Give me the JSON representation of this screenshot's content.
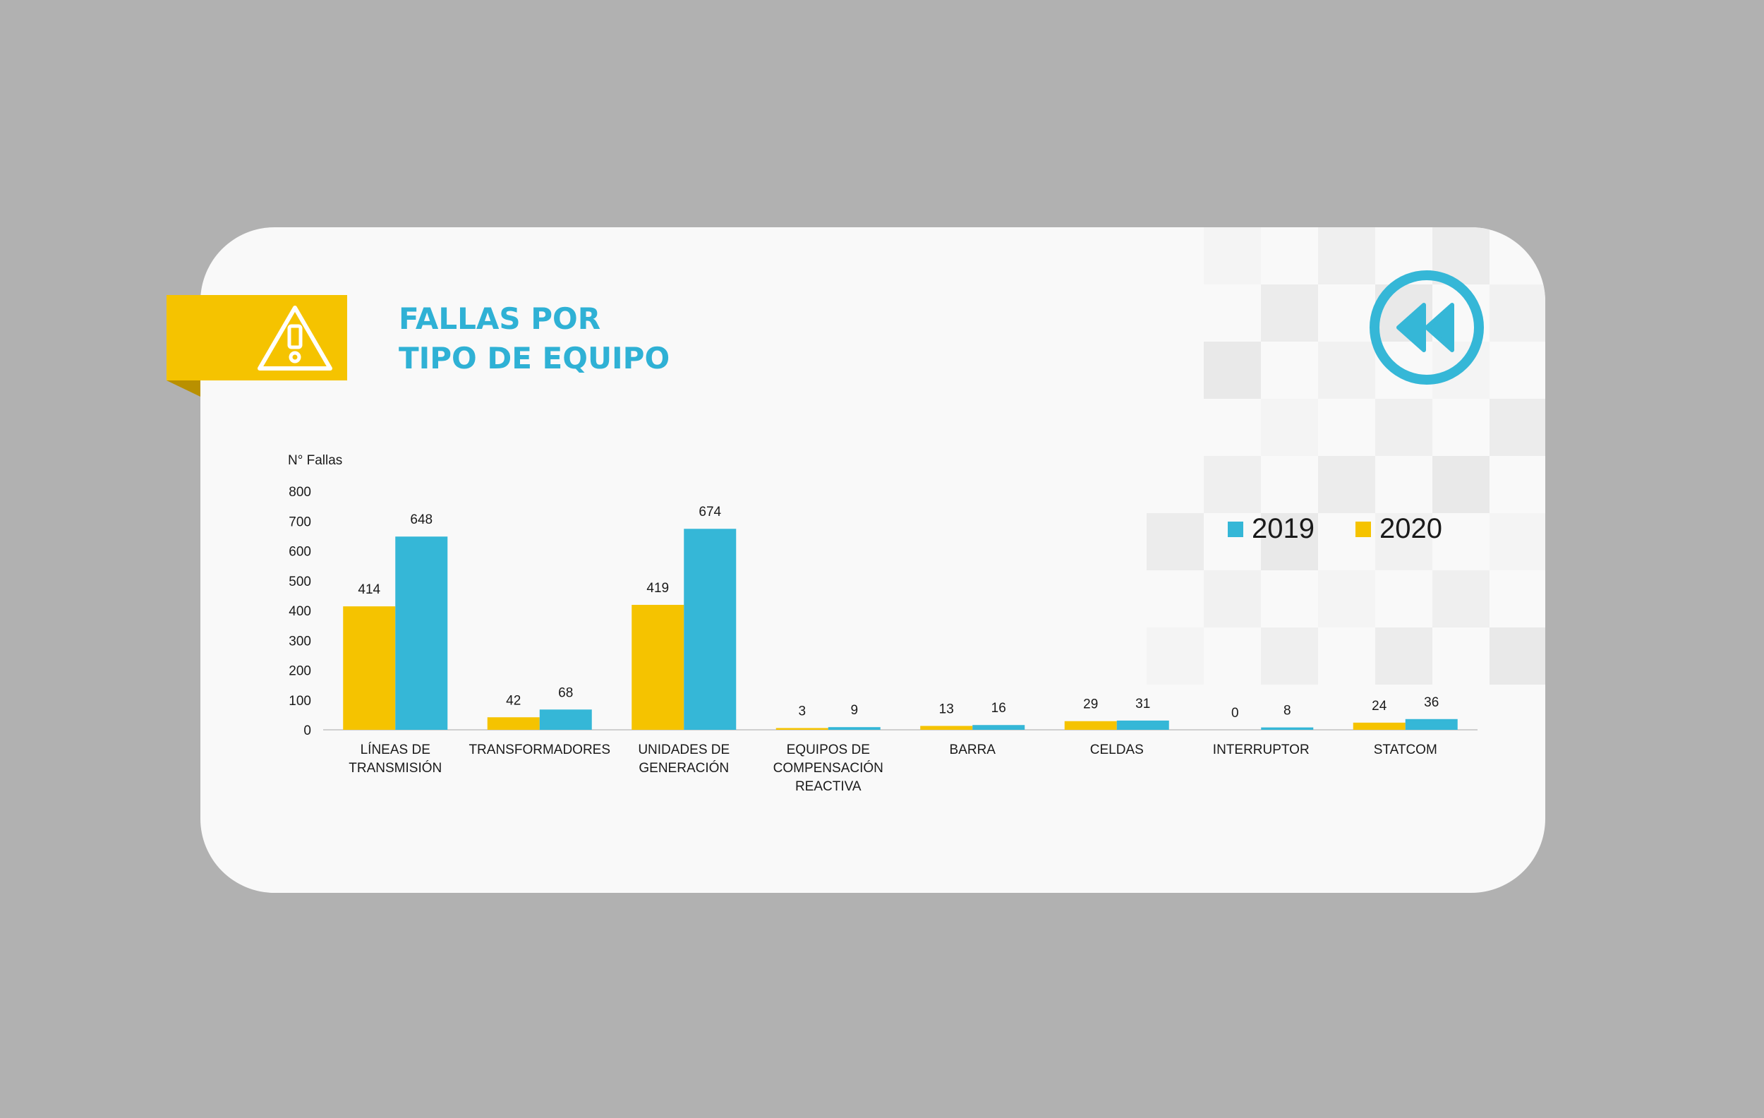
{
  "title_line1": "FALLAS POR",
  "title_line2": "TIPO DE EQUIPO",
  "colors": {
    "background": "#b1b1b1",
    "card": "#f9f9f9",
    "accent_yellow": "#f5c300",
    "accent_blue": "#35b7d7",
    "title": "#2fb1d5"
  },
  "icons": {
    "ribbon": "warning-triangle-icon",
    "navigation": "rewind-icon"
  },
  "chart_data": {
    "type": "bar",
    "title": "",
    "xlabel": "",
    "ylabel": "N° Fallas",
    "ylim": [
      0,
      800
    ],
    "yticks": [
      0,
      100,
      200,
      300,
      400,
      500,
      600,
      700,
      800
    ],
    "categories": [
      [
        "LÍNEAS DE",
        "TRANSMISIÓN"
      ],
      [
        "TRANSFORMADORES"
      ],
      [
        "UNIDADES DE",
        "GENERACIÓN"
      ],
      [
        "EQUIPOS DE",
        "COMPENSACIÓN",
        "REACTIVA"
      ],
      [
        "BARRA"
      ],
      [
        "CELDAS"
      ],
      [
        "INTERRUPTOR"
      ],
      [
        "STATCOM"
      ]
    ],
    "series": [
      {
        "name": "2020",
        "color": "#f5c300",
        "values": [
          414,
          42,
          419,
          3,
          13,
          29,
          0,
          24
        ]
      },
      {
        "name": "2019",
        "color": "#35b7d7",
        "values": [
          648,
          68,
          674,
          9,
          16,
          31,
          8,
          36
        ]
      }
    ],
    "legend": {
      "position": "top-right",
      "order": [
        "2019",
        "2020"
      ]
    },
    "grid": false
  }
}
